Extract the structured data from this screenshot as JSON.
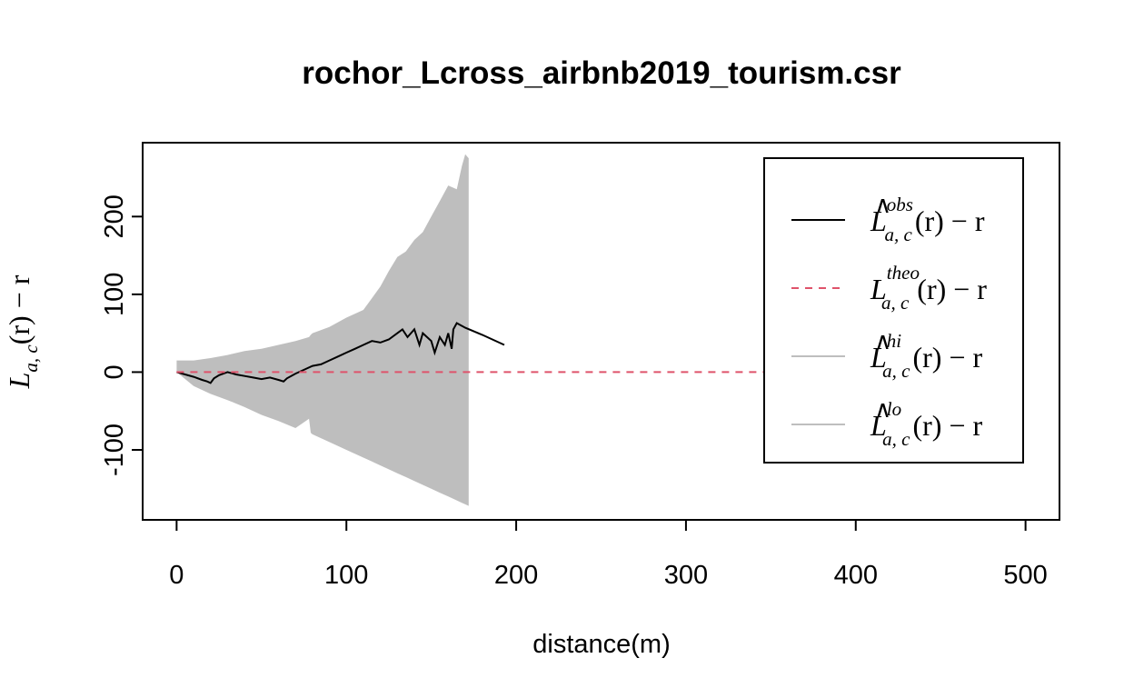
{
  "chart_data": {
    "type": "line",
    "title": "rochor_Lcross_airbnb2019_tourism.csr",
    "xlabel": "distance(m)",
    "ylabel": {
      "base": "L",
      "sub": "a, c",
      "rest": "(r) − r"
    },
    "xlim": [
      -20,
      520
    ],
    "ylim": [
      -190,
      295
    ],
    "x_ticks": [
      0,
      100,
      200,
      300,
      400,
      500
    ],
    "y_ticks": [
      -100,
      0,
      100,
      200
    ],
    "grid": false,
    "legend_position": "top-right",
    "legend": [
      {
        "key": "obs",
        "accent": "∧",
        "base": "L",
        "sup": "obs",
        "sub": "a, c",
        "rest": "(r) − r",
        "color": "#000000",
        "dash": ""
      },
      {
        "key": "theo",
        "accent": "",
        "base": "L",
        "sup": "theo",
        "sub": "a, c",
        "rest": "(r) − r",
        "color": "#DF536B",
        "dash": "8,7"
      },
      {
        "key": "hi",
        "accent": "∧",
        "base": "L",
        "sup": "hi",
        "sub": "a, c",
        "rest": "(r) − r",
        "color": "#BEBEBE",
        "dash": ""
      },
      {
        "key": "lo",
        "accent": "∧",
        "base": "L",
        "sup": "lo",
        "sub": "a, c",
        "rest": "(r) − r",
        "color": "#BEBEBE",
        "dash": ""
      }
    ],
    "envelope": {
      "color": "#BEBEBE",
      "r": [
        0,
        10,
        20,
        30,
        40,
        50,
        60,
        70,
        78,
        79,
        80,
        90,
        100,
        110,
        115,
        120,
        125,
        130,
        135,
        140,
        145,
        150,
        155,
        160,
        165,
        168,
        170,
        172
      ],
      "hi": [
        15,
        15,
        18,
        22,
        27,
        30,
        35,
        40,
        45,
        48,
        50,
        58,
        70,
        80,
        95,
        110,
        130,
        148,
        155,
        170,
        180,
        200,
        220,
        240,
        235,
        265,
        280,
        275
      ],
      "lo": [
        0,
        -18,
        -28,
        -36,
        -45,
        -55,
        -63,
        -72,
        -60,
        -78,
        -80,
        -90,
        -100,
        -110,
        -115,
        -120,
        -125,
        -130,
        -135,
        -140,
        -145,
        -150,
        -155,
        -160,
        -165,
        -168,
        -170,
        -172
      ]
    },
    "series": [
      {
        "name": "obs",
        "color": "#000000",
        "x": [
          0,
          5,
          10,
          15,
          18,
          20,
          22,
          25,
          30,
          35,
          40,
          45,
          50,
          55,
          60,
          63,
          65,
          70,
          75,
          80,
          85,
          90,
          95,
          100,
          105,
          110,
          115,
          120,
          125,
          130,
          133,
          136,
          140,
          143,
          145,
          150,
          152,
          155,
          158,
          160,
          162,
          163,
          165,
          170,
          180,
          193
        ],
        "y": [
          0,
          -3,
          -6,
          -10,
          -12,
          -14,
          -8,
          -4,
          0,
          -3,
          -5,
          -7,
          -9,
          -7,
          -10,
          -12,
          -8,
          -2,
          3,
          8,
          10,
          15,
          20,
          25,
          30,
          35,
          40,
          38,
          42,
          50,
          55,
          45,
          55,
          35,
          50,
          40,
          25,
          45,
          35,
          50,
          30,
          55,
          63,
          57,
          48,
          35
        ]
      },
      {
        "name": "theo",
        "color": "#DF536B",
        "x": [
          0,
          470
        ],
        "y": [
          0,
          0
        ]
      }
    ]
  }
}
